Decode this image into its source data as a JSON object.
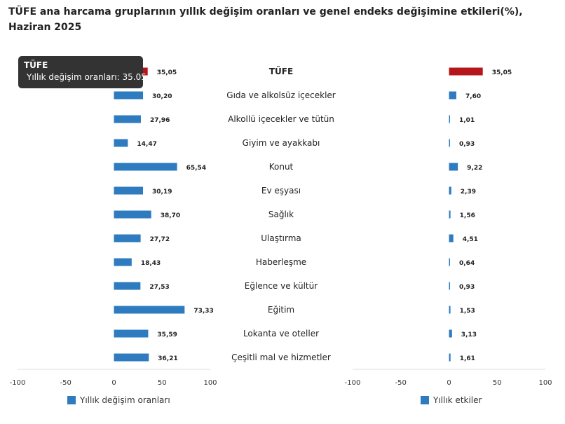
{
  "title": "TÜFE ana harcama gruplarının yıllık değişim oranları ve genel endeks değişimine etkileri(%), Haziran 2025",
  "colors": {
    "highlight": "#B5161B",
    "bar": "#2E7BBF",
    "tooltip_bg": "#333333"
  },
  "tooltip": {
    "title": "TÜFE",
    "series": "Yıllık değişim oranları",
    "value": "35.05"
  },
  "chart_data": [
    {
      "type": "bar",
      "orientation": "horizontal",
      "categories": [
        "TÜFE",
        "Gıda ve alkolsüz içecekler",
        "Alkollü içecekler ve tütün",
        "Giyim ve ayakkabı",
        "Konut",
        "Ev eşyası",
        "Sağlık",
        "Ulaştırma",
        "Haberleşme",
        "Eğlence ve kültür",
        "Eğitim",
        "Lokanta ve oteller",
        "Çeşitli mal ve hizmetler"
      ],
      "series": [
        {
          "name": "Yıllık değişim oranları",
          "values": [
            35.05,
            30.2,
            27.96,
            14.47,
            65.54,
            30.19,
            38.7,
            27.72,
            18.43,
            27.53,
            73.33,
            35.59,
            36.21
          ]
        }
      ],
      "value_labels": [
        "35,05",
        "30,20",
        "27,96",
        "14,47",
        "65,54",
        "30,19",
        "38,70",
        "27,72",
        "18,43",
        "27,53",
        "73,33",
        "35,59",
        "36,21"
      ],
      "xlim": [
        -100,
        100
      ],
      "ticks": [
        -100,
        -50,
        0,
        50,
        100
      ],
      "grid": false,
      "legend": "bottom"
    },
    {
      "type": "bar",
      "orientation": "horizontal",
      "categories": [
        "TÜFE",
        "Gıda ve alkolsüz içecekler",
        "Alkollü içecekler ve tütün",
        "Giyim ve ayakkabı",
        "Konut",
        "Ev eşyası",
        "Sağlık",
        "Ulaştırma",
        "Haberleşme",
        "Eğlence ve kültür",
        "Eğitim",
        "Lokanta ve oteller",
        "Çeşitli mal ve hizmetler"
      ],
      "series": [
        {
          "name": "Yıllık etkiler",
          "values": [
            35.05,
            7.6,
            1.01,
            0.93,
            9.22,
            2.39,
            1.56,
            4.51,
            0.64,
            0.93,
            1.53,
            3.13,
            1.61
          ]
        }
      ],
      "value_labels": [
        "35,05",
        "7,60",
        "1,01",
        "0,93",
        "9,22",
        "2,39",
        "1,56",
        "4,51",
        "0,64",
        "0,93",
        "1,53",
        "3,13",
        "1,61"
      ],
      "xlim": [
        -100,
        100
      ],
      "ticks": [
        -100,
        -50,
        0,
        50,
        100
      ],
      "grid": false,
      "legend": "bottom"
    }
  ]
}
